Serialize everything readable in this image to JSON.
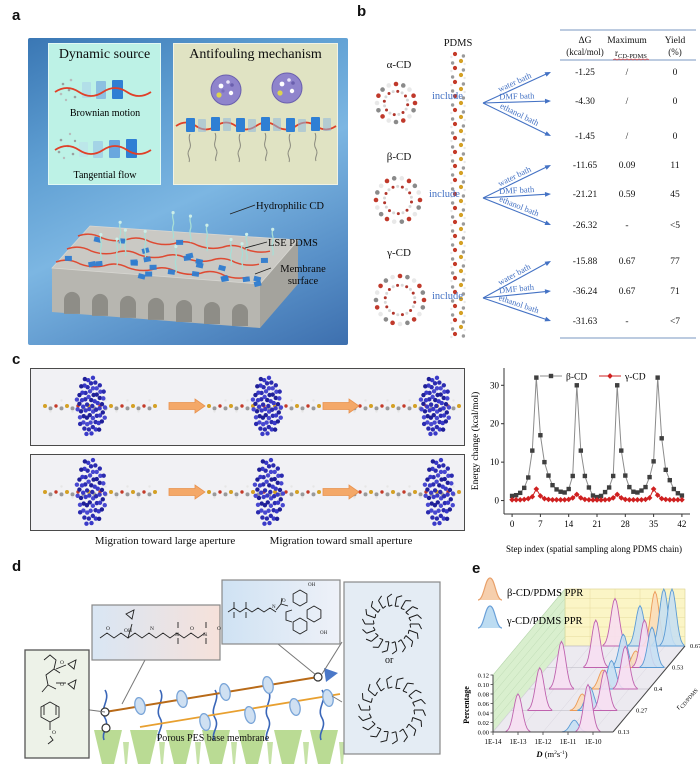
{
  "panel_labels": {
    "a": "a",
    "b": "b",
    "c": "c",
    "d": "d",
    "e": "e"
  },
  "panel_a": {
    "dynamic_source": {
      "title": "Dynamic source",
      "brownian": "Brownian motion",
      "tangential": "Tangential flow"
    },
    "antifouling": {
      "title": "Antifouling mechanism"
    },
    "annotations": {
      "hydrophilic_cd": "Hydrophilic CD",
      "lse_pdms": "LSE PDMS",
      "membrane_surface": "Membrane surface"
    }
  },
  "panel_b": {
    "pdms_label": "PDMS",
    "include_label": "include",
    "header": {
      "col1_line1": "ΔG",
      "col1_line2": "(kcal/mol)",
      "col2_line1": "Maximum",
      "col2_sym": "r",
      "col2_sub": "CD-PDMS",
      "col3_line1": "Yield",
      "col3_line2": "(%)"
    },
    "groups": [
      {
        "name": "α-CD",
        "rows": [
          {
            "bath": "water bath",
            "dg": "-1.25",
            "max_r": "/",
            "yield": "0"
          },
          {
            "bath": "DMF bath",
            "dg": "-4.30",
            "max_r": "/",
            "yield": "0"
          },
          {
            "bath": "ethanol bath",
            "dg": "-1.45",
            "max_r": "/",
            "yield": "0"
          }
        ]
      },
      {
        "name": "β-CD",
        "rows": [
          {
            "bath": "water bath",
            "dg": "-11.65",
            "max_r": "0.09",
            "yield": "11"
          },
          {
            "bath": "DMF bath",
            "dg": "-21.21",
            "max_r": "0.59",
            "yield": "45"
          },
          {
            "bath": "ethanol bath",
            "dg": "-26.32",
            "max_r": "-",
            "yield": "<5"
          }
        ]
      },
      {
        "name": "γ-CD",
        "rows": [
          {
            "bath": "water bath",
            "dg": "-15.88",
            "max_r": "0.67",
            "yield": "77"
          },
          {
            "bath": "DMF bath",
            "dg": "-36.24",
            "max_r": "0.67",
            "yield": "71"
          },
          {
            "bath": "ethanol bath",
            "dg": "-31.63",
            "max_r": "-",
            "yield": "<7"
          }
        ]
      }
    ]
  },
  "panel_c": {
    "caption_left": "Migration toward large aperture",
    "caption_right": "Migration toward small aperture"
  },
  "panel_d": {
    "or_label": "or",
    "membrane_label": "Porous PES base membrane"
  },
  "panel_e": {
    "legend": [
      {
        "label": "β-CD/PDMS PPR",
        "fill": "#f6cfad",
        "stroke": "#e8a06a"
      },
      {
        "label": "γ-CD/PDMS PPR",
        "fill": "#bcdcf2",
        "stroke": "#6aa0d8"
      }
    ]
  },
  "chart_data": [
    {
      "id": "energy_profile",
      "type": "line",
      "xlabel": "Step index (spatial sampling along PDMS chain)",
      "ylabel": "Energy change (kcal/mol)",
      "x_ticks": [
        0,
        7,
        14,
        21,
        28,
        35,
        42
      ],
      "y_ticks": [
        0,
        10,
        20,
        30
      ],
      "xlim": [
        -2,
        44
      ],
      "ylim": [
        -3.5,
        34.5
      ],
      "legend_position": "top",
      "grid": false,
      "series": [
        {
          "name": "β-CD",
          "color": "#3f3f3f",
          "line_color": "#8c8c8c",
          "marker": "square",
          "values": [
            1.2,
            1.4,
            2.0,
            3.3,
            6.0,
            13.0,
            32.0,
            17.0,
            10.0,
            6.5,
            4.0,
            2.9,
            2.3,
            2.1,
            3.0,
            6.4,
            30.0,
            13.0,
            6.4,
            3.4,
            1.3,
            0.9,
            1.2,
            2.2,
            3.4,
            6.4,
            30.0,
            13.0,
            6.5,
            3.5,
            2.3,
            2.1,
            2.6,
            3.5,
            6.1,
            10.2,
            32.0,
            16.2,
            8.0,
            5.3,
            3.0,
            1.9,
            1.3
          ]
        },
        {
          "name": "γ-CD",
          "color": "#cf2020",
          "line_color": "#cf2020",
          "marker": "diamond",
          "values": [
            0.2,
            0.2,
            0.2,
            0.3,
            0.5,
            1.0,
            3.0,
            1.2,
            0.5,
            0.3,
            0.2,
            0.2,
            0.2,
            0.2,
            0.3,
            0.7,
            1.6,
            0.7,
            0.3,
            0.2,
            0.15,
            0.15,
            0.15,
            0.2,
            0.3,
            0.7,
            1.6,
            0.7,
            0.3,
            0.2,
            0.2,
            0.2,
            0.2,
            0.3,
            0.7,
            3.0,
            1.4,
            0.5,
            0.3,
            0.2,
            0.2,
            0.2,
            0.2
          ]
        }
      ]
    },
    {
      "id": "ppr_distribution",
      "type": "ridgeline3d",
      "xlabel_main": "D",
      "xlabel_pre": " (m",
      "xlabel_sup_a": "2",
      "xlabel_mid": "s",
      "xlabel_sup_b": "-1",
      "xlabel_post": ")",
      "ylabel": "Percentage",
      "zlabel_sym": "r",
      "zlabel_sub": "CD/PDMS",
      "x_ticks": [
        "1E-14",
        "1E-13",
        "1E-12",
        "1E-11",
        "1E-10"
      ],
      "y_ticks": [
        "0.00",
        "0.02",
        "0.04",
        "0.06",
        "0.08",
        "0.10",
        "0.12"
      ],
      "z_ticks": [
        "0.13",
        "0.27",
        "0.4",
        "0.53",
        "0.67"
      ],
      "rows": [
        {
          "r": "0.13",
          "peaks": [
            {
              "logD": -13.0,
              "h": 0.08,
              "c": "pink"
            },
            {
              "logD": -10.75,
              "h": 0.025,
              "c": "blue"
            },
            {
              "logD": -10.2,
              "h": 0.1,
              "c": "pink"
            }
          ]
        },
        {
          "r": "0.27",
          "peaks": [
            {
              "logD": -12.85,
              "h": 0.09,
              "c": "pink"
            },
            {
              "logD": -11.15,
              "h": 0.035,
              "c": "orange"
            },
            {
              "logD": -10.85,
              "h": 0.05,
              "c": "blue"
            },
            {
              "logD": -10.25,
              "h": 0.085,
              "c": "pink"
            }
          ]
        },
        {
          "r": "0.4",
          "peaks": [
            {
              "logD": -12.7,
              "h": 0.1,
              "c": "pink"
            },
            {
              "logD": -11.05,
              "h": 0.04,
              "c": "orange"
            },
            {
              "logD": -10.7,
              "h": 0.06,
              "c": "blue"
            },
            {
              "logD": -10.15,
              "h": 0.09,
              "c": "pink"
            }
          ]
        },
        {
          "r": "0.53",
          "peaks": [
            {
              "logD": -12.05,
              "h": 0.1,
              "c": "pink"
            },
            {
              "logD": -10.95,
              "h": 0.07,
              "c": "blue"
            },
            {
              "logD": -10.45,
              "h": 0.035,
              "c": "orange"
            },
            {
              "logD": -10.1,
              "h": 0.1,
              "c": "pink"
            },
            {
              "logD": -9.8,
              "h": 0.085,
              "c": "blue"
            }
          ]
        },
        {
          "r": "0.67",
          "peaks": [
            {
              "logD": -12.0,
              "h": 0.1,
              "c": "pink"
            },
            {
              "logD": -11.0,
              "h": 0.085,
              "c": "blue"
            },
            {
              "logD": -10.4,
              "h": 0.115,
              "c": "orange"
            },
            {
              "logD": -10.05,
              "h": 0.12,
              "c": "blue"
            },
            {
              "logD": -9.72,
              "h": 0.12,
              "c": "blue"
            }
          ]
        }
      ]
    }
  ]
}
